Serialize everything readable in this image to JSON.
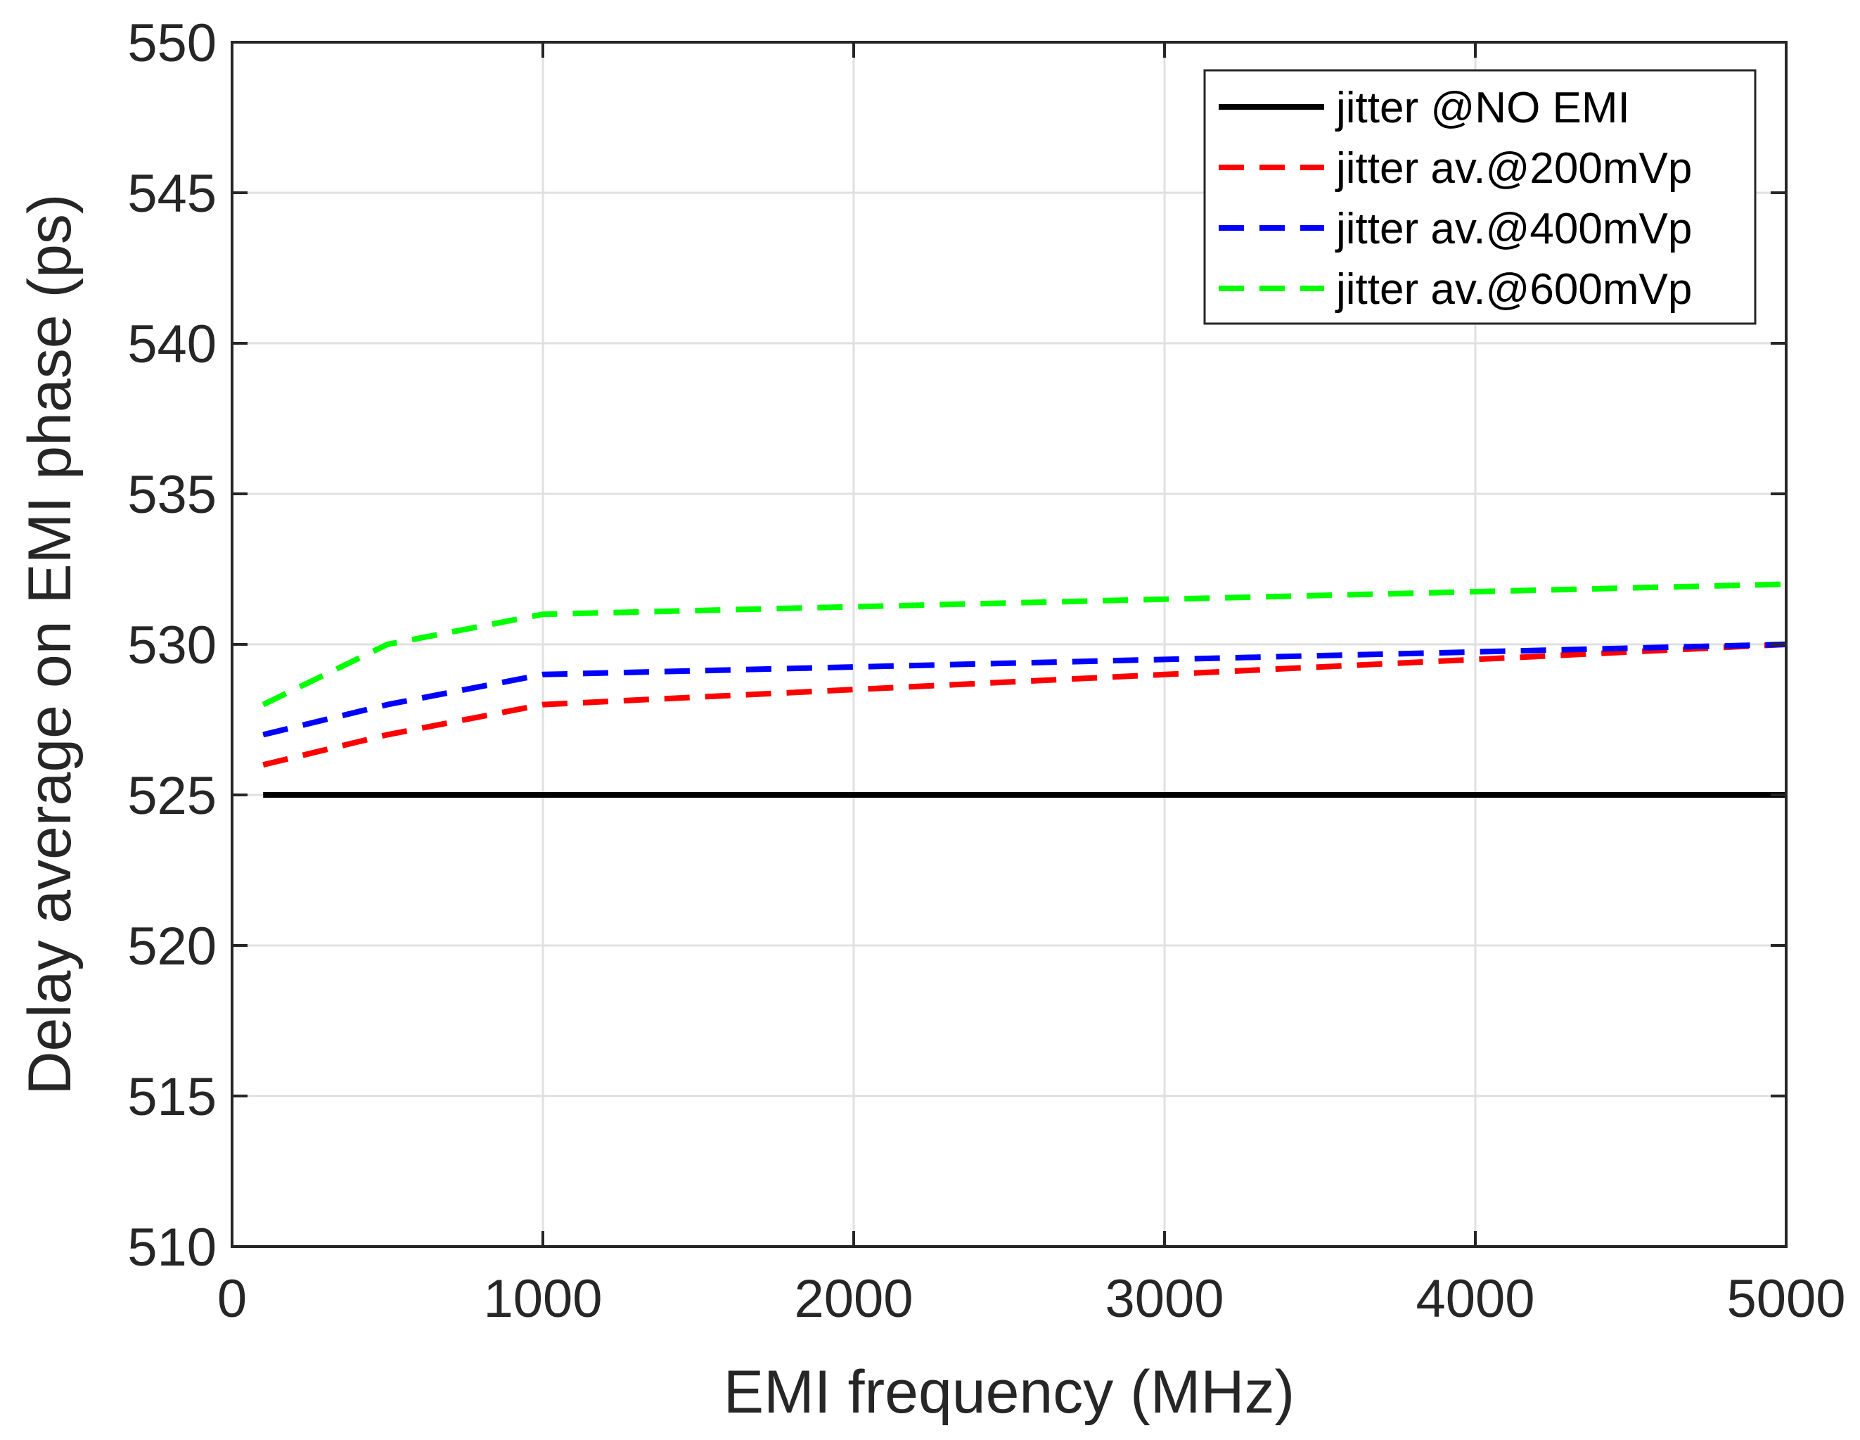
{
  "chart_data": {
    "type": "line",
    "title": "",
    "xlabel": "EMI frequency (MHz)",
    "ylabel": "Delay average on EMI phase (ps)",
    "xlim": [
      0,
      5000
    ],
    "ylim": [
      510,
      550
    ],
    "xticks": [
      0,
      1000,
      2000,
      3000,
      4000,
      5000
    ],
    "xtick_labels": [
      "0",
      "1000",
      "2000",
      "3000",
      "4000",
      "5000"
    ],
    "yticks": [
      510,
      515,
      520,
      525,
      530,
      535,
      540,
      545,
      550
    ],
    "ytick_labels": [
      "510",
      "515",
      "520",
      "525",
      "530",
      "535",
      "540",
      "545",
      "550"
    ],
    "grid": true,
    "legend_position": "top-right",
    "series": [
      {
        "name": "jitter @NO EMI",
        "color": "#000000",
        "style": "solid",
        "x": [
          100,
          500,
          1000,
          2000,
          3000,
          4000,
          5000
        ],
        "values": [
          525,
          525,
          525,
          525,
          525,
          525,
          525
        ]
      },
      {
        "name": "jitter av.@200mVp",
        "color": "#ff0000",
        "style": "dashed",
        "x": [
          100,
          500,
          1000,
          2000,
          3000,
          4000,
          5000
        ],
        "values": [
          526,
          527,
          528,
          528.5,
          529,
          529.5,
          530
        ]
      },
      {
        "name": "jitter av.@400mVp",
        "color": "#0000ff",
        "style": "dashed",
        "x": [
          100,
          500,
          1000,
          2000,
          3000,
          4000,
          5000
        ],
        "values": [
          527,
          528,
          529,
          529.25,
          529.5,
          529.75,
          530
        ]
      },
      {
        "name": "jitter av.@600mVp",
        "color": "#00ff00",
        "style": "dashed",
        "x": [
          100,
          500,
          1000,
          2000,
          3000,
          4000,
          5000
        ],
        "values": [
          528,
          530,
          531,
          531.25,
          531.5,
          531.75,
          532
        ]
      }
    ]
  }
}
